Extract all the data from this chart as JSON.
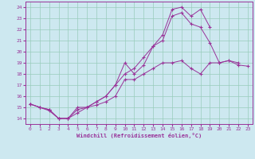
{
  "title": "",
  "xlabel": "Windchill (Refroidissement éolien,°C)",
  "ylabel": "",
  "background_color": "#cde8f0",
  "line_color": "#993399",
  "grid_color": "#99ccbb",
  "xlim": [
    -0.5,
    23.5
  ],
  "ylim": [
    13.5,
    24.5
  ],
  "yticks": [
    14,
    15,
    16,
    17,
    18,
    19,
    20,
    21,
    22,
    23,
    24
  ],
  "xticks": [
    0,
    1,
    2,
    3,
    4,
    5,
    6,
    7,
    8,
    9,
    10,
    11,
    12,
    13,
    14,
    15,
    16,
    17,
    18,
    19,
    20,
    21,
    22,
    23
  ],
  "series": [
    {
      "x": [
        0,
        1,
        2,
        3,
        4,
        5,
        6,
        7,
        8,
        9,
        10,
        11,
        12,
        13,
        14,
        15,
        16,
        17,
        18,
        19,
        20,
        21,
        22,
        23
      ],
      "y": [
        15.3,
        15.0,
        14.8,
        14.0,
        14.0,
        15.0,
        15.0,
        15.2,
        15.5,
        16.0,
        17.5,
        17.5,
        18.0,
        18.5,
        19.0,
        19.0,
        19.2,
        18.5,
        18.0,
        19.0,
        19.0,
        19.2,
        18.8,
        18.7
      ]
    },
    {
      "x": [
        0,
        1,
        2,
        3,
        4,
        5,
        6,
        7,
        8,
        9,
        10,
        11,
        12,
        13,
        14,
        15,
        16,
        17,
        18,
        19,
        20,
        21,
        22,
        23
      ],
      "y": [
        15.3,
        15.0,
        14.8,
        14.0,
        14.0,
        14.8,
        15.0,
        15.5,
        16.0,
        17.0,
        18.0,
        18.5,
        19.5,
        20.5,
        21.0,
        23.2,
        23.5,
        22.5,
        22.2,
        20.8,
        19.0,
        19.2,
        19.0,
        null
      ]
    },
    {
      "x": [
        0,
        1,
        2,
        3,
        4,
        5,
        6,
        7,
        8,
        9,
        10,
        11,
        12,
        13,
        14,
        15,
        16,
        17,
        18,
        19,
        20,
        21,
        22,
        23
      ],
      "y": [
        15.3,
        15.0,
        14.7,
        14.0,
        14.0,
        14.5,
        15.0,
        15.5,
        16.0,
        17.0,
        19.0,
        18.0,
        18.8,
        20.5,
        21.5,
        23.8,
        24.0,
        23.2,
        23.8,
        22.2,
        null,
        null,
        null,
        null
      ]
    }
  ]
}
